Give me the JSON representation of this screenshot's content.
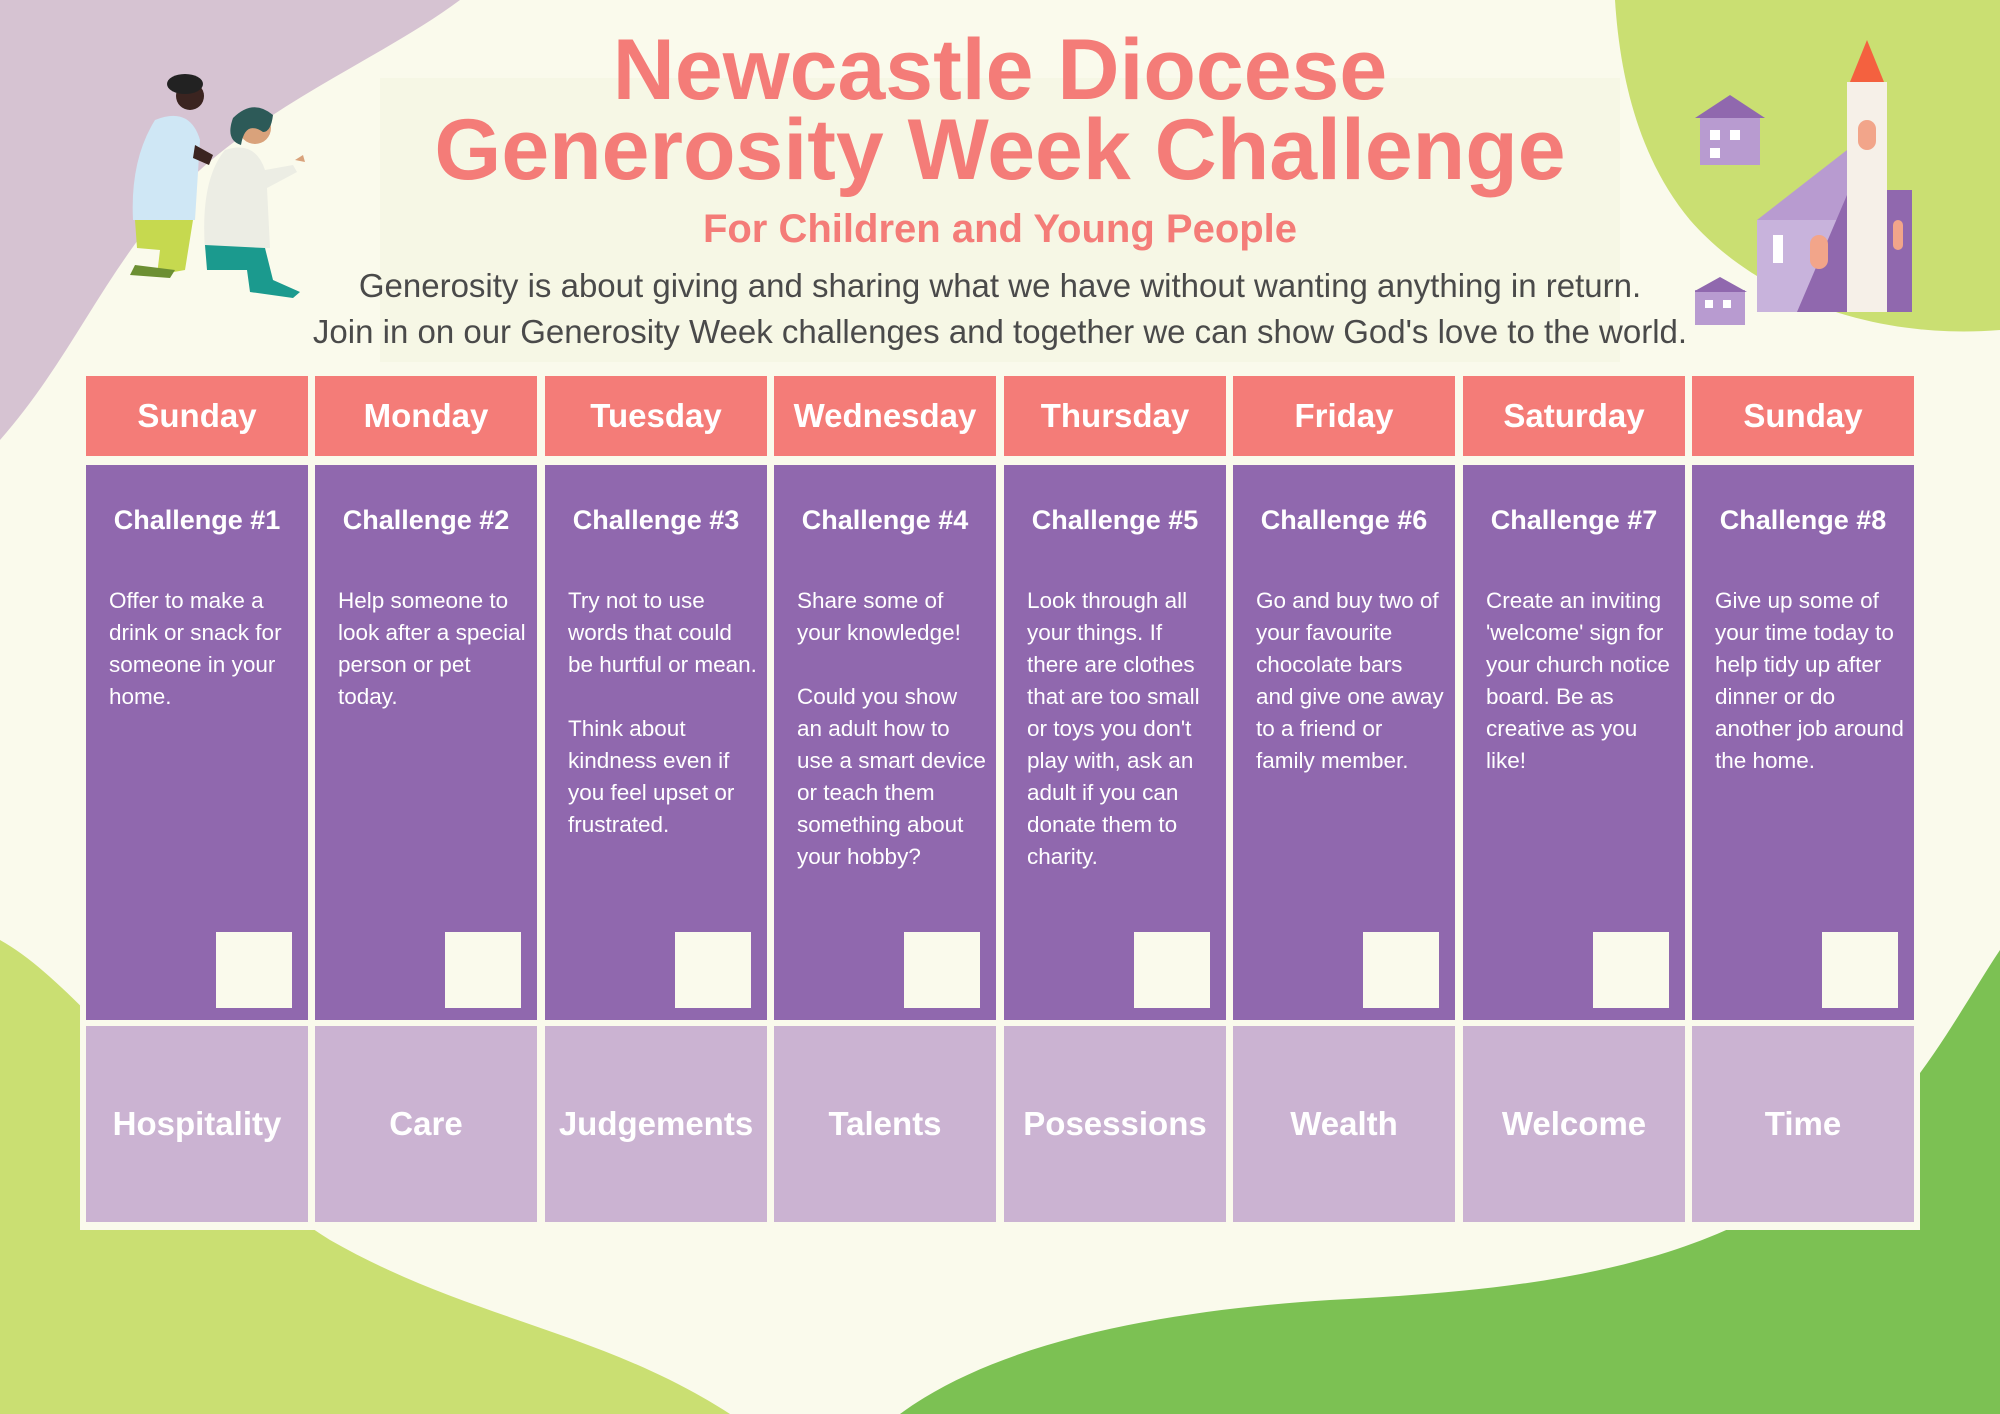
{
  "title_line1": "Newcastle Diocese",
  "title_line2": "Generosity Week Challenge",
  "subtitle": "For Children and Young People",
  "intro_line1": "Generosity is about giving and sharing what we have without wanting anything in return.",
  "intro_line2": "Join in on our Generosity Week challenges and together we can show God's love to the world.",
  "colors": {
    "coral": "#F47C78",
    "purple": "#9068AE",
    "lilac": "#CBB3D2",
    "cream": "#FAFAEC",
    "green": "#7CC153",
    "lime": "#CADF72"
  },
  "columns": [
    {
      "day": "Sunday",
      "challenge": "Challenge #1",
      "text": "Offer to make a drink or snack for someone in your home.",
      "theme": "Hospitality"
    },
    {
      "day": "Monday",
      "challenge": "Challenge #2",
      "text": "Help someone to look after a special person or pet today.",
      "theme": "Care"
    },
    {
      "day": "Tuesday",
      "challenge": "Challenge #3",
      "text": "Try not to use words that could be hurtful or mean.\n\nThink about kindness even if you feel upset or frustrated.",
      "theme": "Judgements"
    },
    {
      "day": "Wednesday",
      "challenge": "Challenge #4",
      "text": "Share some of your knowledge!\n\nCould you show an adult how to use a smart device or teach them something about your hobby?",
      "theme": "Talents"
    },
    {
      "day": "Thursday",
      "challenge": "Challenge #5",
      "text": "Look through all your things. If there are clothes that are too small or toys you don't play with, ask an adult if you can donate them to charity.",
      "theme": "Posessions"
    },
    {
      "day": "Friday",
      "challenge": "Challenge #6",
      "text": "Go and buy two of your favourite chocolate bars and give one away to a friend or family member.",
      "theme": "Wealth"
    },
    {
      "day": "Saturday",
      "challenge": "Challenge #7",
      "text": "Create an inviting 'welcome' sign for your church notice board. Be as creative as you like!",
      "theme": "Welcome"
    },
    {
      "day": "Sunday",
      "challenge": "Challenge #8",
      "text": "Give up some of your time today to help tidy up after dinner or do another job around the home.",
      "theme": "Time"
    }
  ]
}
